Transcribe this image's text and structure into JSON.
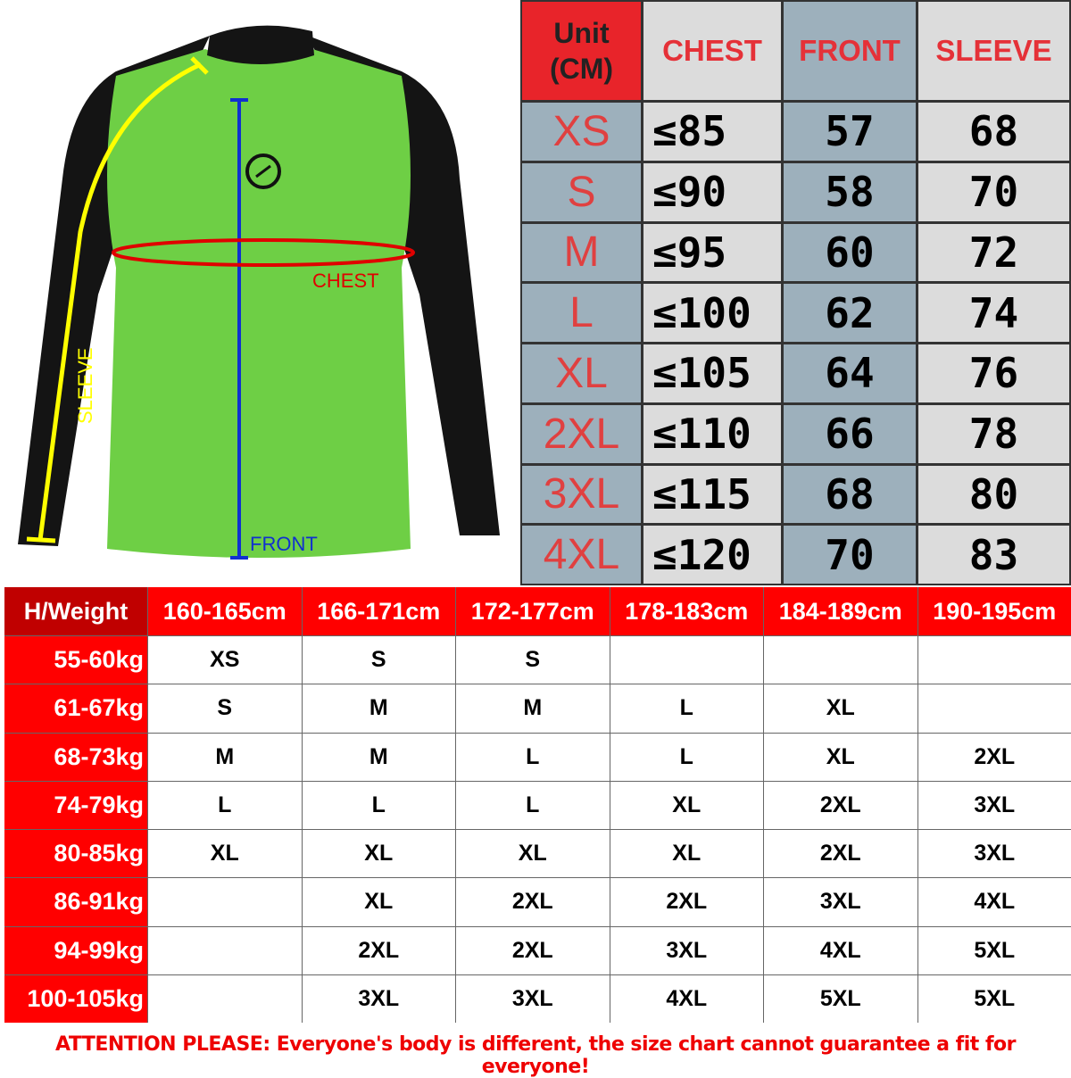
{
  "illustration": {
    "labels": {
      "chest": "CHEST",
      "front": "FRONT",
      "sleeve": "SLEEVE"
    },
    "colors": {
      "body": "#6ecf45",
      "sleeves": "#111111",
      "chest_line": "#e00000",
      "front_line": "#1030d0",
      "sleeve_line": "#ffff00"
    }
  },
  "measurements": {
    "unit_label": "Unit (CM)",
    "headers": [
      "CHEST",
      "FRONT",
      "SLEEVE"
    ],
    "rows": [
      {
        "size": "XS",
        "chest": "≤85",
        "front": "57",
        "sleeve": "68"
      },
      {
        "size": "S",
        "chest": "≤90",
        "front": "58",
        "sleeve": "70"
      },
      {
        "size": "M",
        "chest": "≤95",
        "front": "60",
        "sleeve": "72"
      },
      {
        "size": "L",
        "chest": "≤100",
        "front": "62",
        "sleeve": "74"
      },
      {
        "size": "XL",
        "chest": "≤105",
        "front": "64",
        "sleeve": "76"
      },
      {
        "size": "2XL",
        "chest": "≤110",
        "front": "66",
        "sleeve": "78"
      },
      {
        "size": "3XL",
        "chest": "≤115",
        "front": "68",
        "sleeve": "80"
      },
      {
        "size": "4XL",
        "chest": "≤120",
        "front": "70",
        "sleeve": "83"
      }
    ]
  },
  "fit_chart": {
    "corner": "H/Weight",
    "heights": [
      "160-165cm",
      "166-171cm",
      "172-177cm",
      "178-183cm",
      "184-189cm",
      "190-195cm"
    ],
    "rows": [
      {
        "weight": "55-60kg",
        "sizes": [
          "XS",
          "S",
          "S",
          "",
          "",
          ""
        ]
      },
      {
        "weight": "61-67kg",
        "sizes": [
          "S",
          "M",
          "M",
          "L",
          "XL",
          ""
        ]
      },
      {
        "weight": "68-73kg",
        "sizes": [
          "M",
          "M",
          "L",
          "L",
          "XL",
          "2XL"
        ]
      },
      {
        "weight": "74-79kg",
        "sizes": [
          "L",
          "L",
          "L",
          "XL",
          "2XL",
          "3XL"
        ]
      },
      {
        "weight": "80-85kg",
        "sizes": [
          "XL",
          "XL",
          "XL",
          "XL",
          "2XL",
          "3XL"
        ]
      },
      {
        "weight": "86-91kg",
        "sizes": [
          "",
          "XL",
          "2XL",
          "2XL",
          "3XL",
          "4XL"
        ]
      },
      {
        "weight": "94-99kg",
        "sizes": [
          "",
          "2XL",
          "2XL",
          "3XL",
          "4XL",
          "5XL"
        ]
      },
      {
        "weight": "100-105kg",
        "sizes": [
          "",
          "3XL",
          "3XL",
          "4XL",
          "5XL",
          "5XL"
        ]
      }
    ]
  },
  "note": "ATTENTION PLEASE: Everyone's body is different, the size chart cannot guarantee a fit for everyone!"
}
